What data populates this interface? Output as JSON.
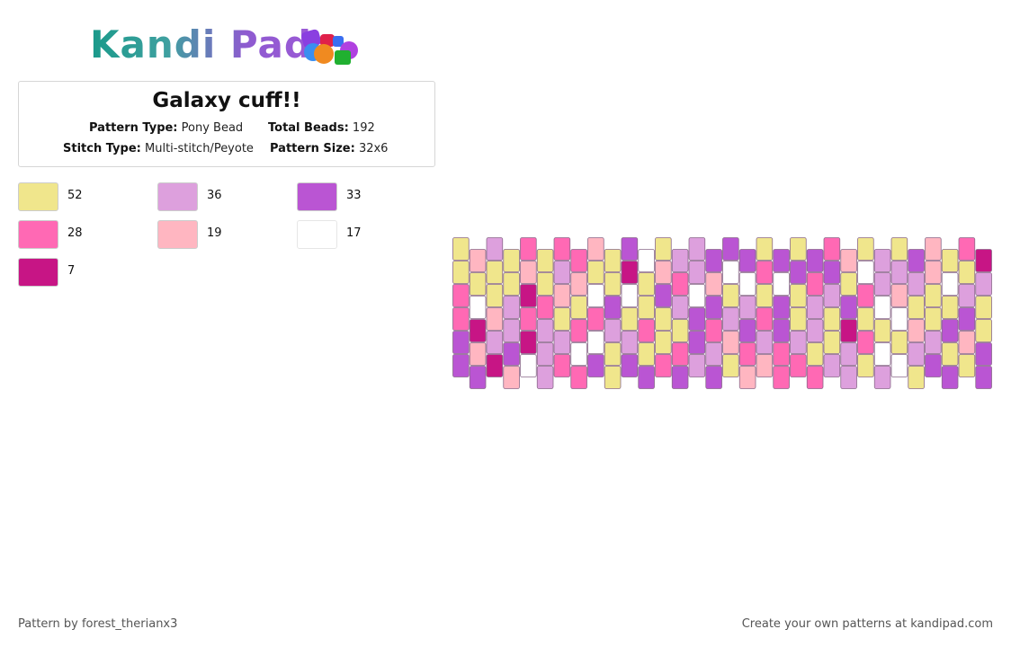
{
  "brand": {
    "name": "Kandi Pad"
  },
  "pattern": {
    "title": "Galaxy cuff!!",
    "type_label": "Pattern Type:",
    "type_value": "Pony Bead",
    "beads_label": "Total Beads:",
    "beads_value": "192",
    "stitch_label": "Stitch Type:",
    "stitch_value": "Multi-stitch/Peyote",
    "size_label": "Pattern Size:",
    "size_value": "32x6"
  },
  "palette": [
    {
      "color": "#f0e68c",
      "count": "52"
    },
    {
      "color": "#dda0dd",
      "count": "36"
    },
    {
      "color": "#ba55d3",
      "count": "33"
    },
    {
      "color": "#ff69b4",
      "count": "28"
    },
    {
      "color": "#ffb6c1",
      "count": "19"
    },
    {
      "color": "#ffffff",
      "count": "17"
    },
    {
      "color": "#c71585",
      "count": "7"
    }
  ],
  "footer": {
    "author": "Pattern by forest_therianx3",
    "cta": "Create your own patterns at kandipad.com"
  }
}
